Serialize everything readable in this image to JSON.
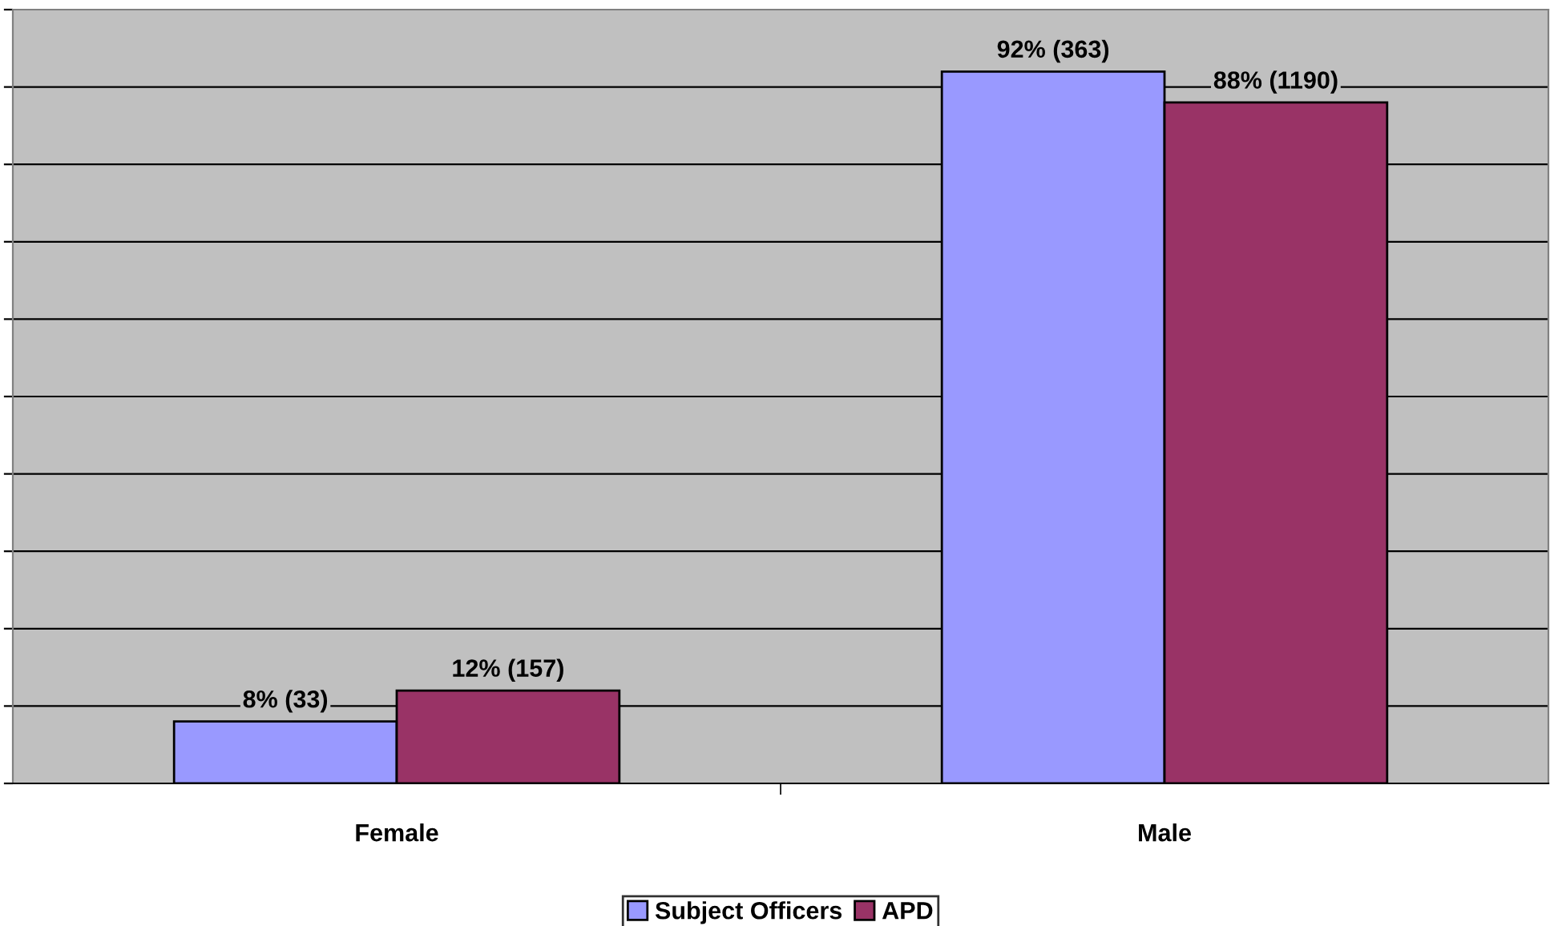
{
  "chart_data": {
    "type": "bar",
    "categories": [
      "Female",
      "Male"
    ],
    "series": [
      {
        "name": "Subject Officers",
        "color": "#9999ff",
        "values": [
          8,
          92
        ],
        "value_labels": [
          "8% (33)",
          "92% (363)"
        ]
      },
      {
        "name": "APD",
        "color": "#993366",
        "values": [
          12,
          88
        ],
        "value_labels": [
          "12% (157)",
          "88% (1190)"
        ]
      }
    ],
    "ylim": [
      0,
      100
    ],
    "yticks": [
      {
        "value": 0,
        "label": null
      },
      {
        "value": 10,
        "label": null
      },
      {
        "value": 20,
        "label": null
      },
      {
        "value": 30,
        "label": null
      },
      {
        "value": 40,
        "label": null
      },
      {
        "value": 50,
        "label": null
      },
      {
        "value": 60,
        "label": null
      },
      {
        "value": 70,
        "label": null
      },
      {
        "value": 80,
        "label": null
      },
      {
        "value": 90,
        "label": null
      },
      {
        "value": 100,
        "label": null
      }
    ],
    "tick_labels": "x",
    "grid": "y",
    "legend": "bottom"
  }
}
